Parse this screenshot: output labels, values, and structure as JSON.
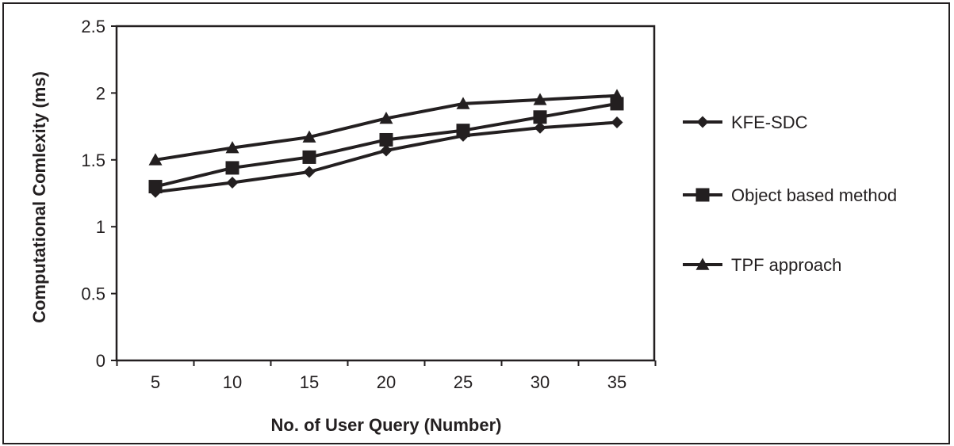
{
  "chart_data": {
    "type": "line",
    "x": [
      5,
      10,
      15,
      20,
      25,
      30,
      35
    ],
    "xlabel": "No. of User Query (Number)",
    "ylabel": "Computational Comlexity (ms)",
    "ylim": [
      0,
      2.5
    ],
    "yticks": [
      0,
      0.5,
      1,
      1.5,
      2,
      2.5
    ],
    "ytick_labels": [
      "0",
      "0.5",
      "1",
      "1.5",
      "2",
      "2.5"
    ],
    "xtick_labels": [
      "5",
      "10",
      "15",
      "20",
      "25",
      "30",
      "35"
    ],
    "grid": false,
    "legend_position": "right",
    "series": [
      {
        "name": "KFE-SDC",
        "marker": "diamond",
        "color": "#231f20",
        "values": [
          1.26,
          1.33,
          1.41,
          1.57,
          1.68,
          1.74,
          1.78
        ]
      },
      {
        "name": "Object based method",
        "marker": "square",
        "color": "#231f20",
        "values": [
          1.3,
          1.44,
          1.52,
          1.65,
          1.72,
          1.82,
          1.92
        ]
      },
      {
        "name": "TPF approach",
        "marker": "triangle",
        "color": "#231f20",
        "values": [
          1.5,
          1.59,
          1.67,
          1.81,
          1.92,
          1.95,
          1.98
        ]
      }
    ]
  }
}
